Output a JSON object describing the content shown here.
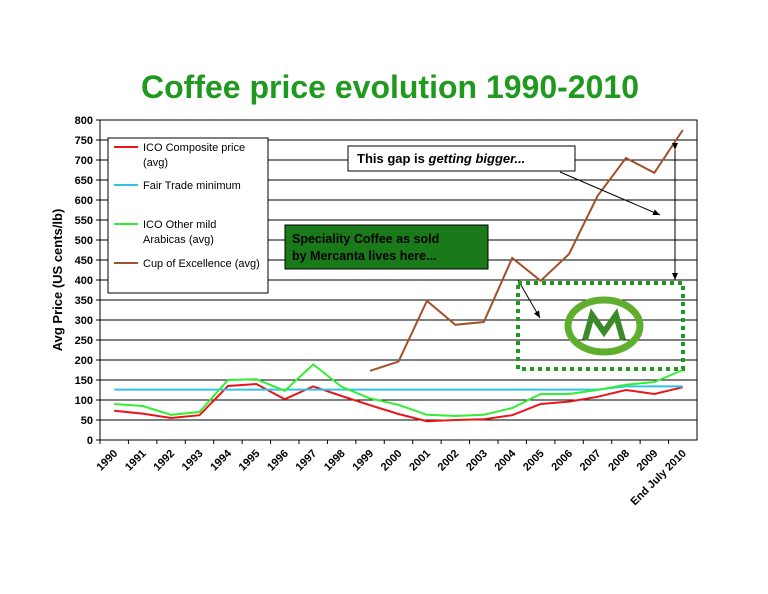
{
  "chart_data": {
    "type": "line",
    "title": "Coffee price evolution 1990-2010",
    "y_label": "Avg Price (US cents/lb)",
    "categories": [
      "1990",
      "1991",
      "1992",
      "1993",
      "1994",
      "1995",
      "1996",
      "1997",
      "1998",
      "1999",
      "2000",
      "2001",
      "2002",
      "2003",
      "2004",
      "2005",
      "2006",
      "2007",
      "2008",
      "2009",
      "End July 2010"
    ],
    "series": [
      {
        "name": "ICO Composite price (avg)",
        "color": "#e8161b",
        "values": [
          73,
          66,
          55,
          62,
          135,
          140,
          102,
          134,
          110,
          87,
          65,
          47,
          50,
          52,
          62,
          90,
          96,
          108,
          125,
          115,
          132
        ]
      },
      {
        "name": "Fair Trade minimum",
        "color": "#33c3e6",
        "values": [
          126,
          126,
          126,
          126,
          126,
          126,
          126,
          126,
          126,
          126,
          126,
          126,
          126,
          126,
          126,
          126,
          126,
          126,
          134,
          134,
          134
        ]
      },
      {
        "name": "ICO Other mild Arabicas (avg)",
        "color": "#33ee33",
        "values": [
          90,
          85,
          63,
          70,
          150,
          152,
          123,
          189,
          133,
          104,
          88,
          63,
          60,
          63,
          80,
          115,
          115,
          125,
          138,
          145,
          175
        ]
      },
      {
        "name": "Cup of Excellence (avg)",
        "color": "#a0522d",
        "values": [
          null,
          null,
          null,
          null,
          null,
          null,
          null,
          null,
          null,
          173,
          196,
          348,
          288,
          295,
          455,
          398,
          465,
          610,
          705,
          668,
          775
        ]
      }
    ],
    "ylim": [
      0,
      800
    ],
    "yticks": [
      0,
      50,
      100,
      150,
      200,
      250,
      300,
      350,
      400,
      450,
      500,
      550,
      600,
      650,
      700,
      750,
      800
    ],
    "grid": true,
    "annotations": {
      "gap": [
        "This gap is ",
        "getting bigger..."
      ],
      "speciality": [
        "Speciality Coffee as sold",
        "by Mercanta lives here..."
      ]
    }
  }
}
